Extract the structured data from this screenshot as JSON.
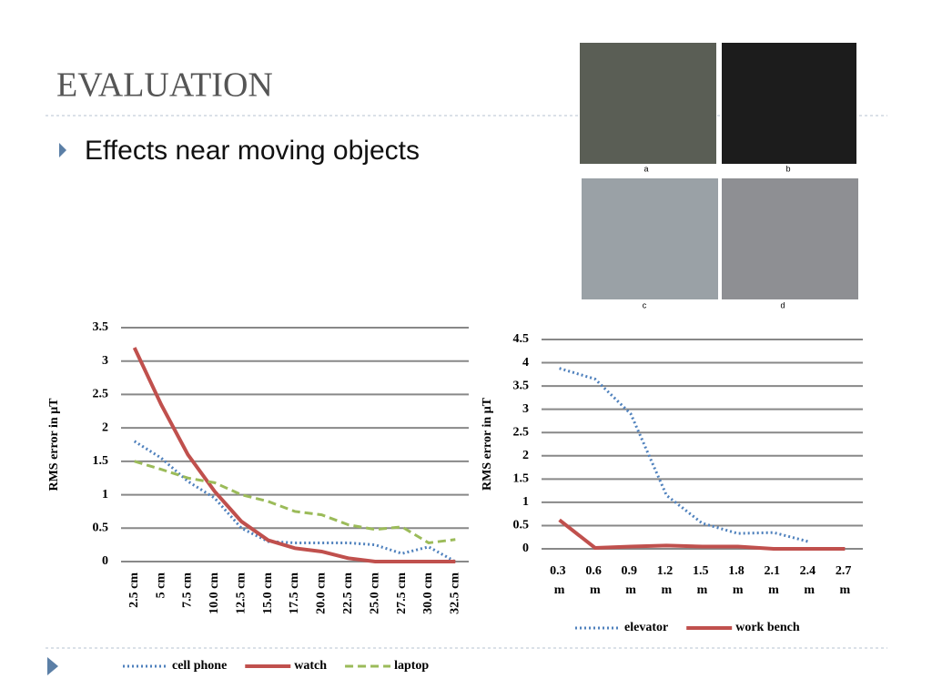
{
  "header": {
    "title": "EVALUATION",
    "bullet": "Effects near moving objects"
  },
  "photos": [
    {
      "caption": "a"
    },
    {
      "caption": "b"
    },
    {
      "caption": "c"
    },
    {
      "caption": "d"
    }
  ],
  "chart_data": [
    {
      "type": "line",
      "y_label": "RMS error in µT",
      "categories": [
        "2.5 cm",
        "5 cm",
        "7.5 cm",
        "10.0 cm",
        "12.5 cm",
        "15.0 cm",
        "17.5 cm",
        "20.0 cm",
        "22.5 cm",
        "25.0 cm",
        "27.5 cm",
        "30.0 cm",
        "32.5 cm"
      ],
      "ylim": [
        0,
        3.5
      ],
      "yticks": [
        0,
        0.5,
        1,
        1.5,
        2,
        2.5,
        3,
        3.5
      ],
      "grid": true,
      "legend": "bottom",
      "series": [
        {
          "name": "cell phone",
          "color": "#4f81bd",
          "style": "dotted",
          "values": [
            1.8,
            1.55,
            1.2,
            0.95,
            0.5,
            0.3,
            0.28,
            0.28,
            0.28,
            0.25,
            0.12,
            0.22,
            0
          ]
        },
        {
          "name": "watch",
          "color": "#c0504d",
          "style": "solid",
          "values": [
            3.2,
            2.35,
            1.6,
            1.05,
            0.6,
            0.32,
            0.2,
            0.15,
            0.05,
            0,
            0,
            0,
            0
          ]
        },
        {
          "name": "laptop",
          "color": "#9bbb59",
          "style": "dashed",
          "values": [
            1.5,
            1.38,
            1.25,
            1.18,
            1.0,
            0.9,
            0.75,
            0.7,
            0.55,
            0.48,
            0.52,
            0.28,
            0.33
          ]
        }
      ]
    },
    {
      "type": "line",
      "y_label": "RMS error in µT",
      "categories": [
        "0.3 m",
        "0.6 m",
        "0.9 m",
        "1.2 m",
        "1.5 m",
        "1.8 m",
        "2.1 m",
        "2.4 m",
        "2.7 m"
      ],
      "ylim": [
        0,
        4.5
      ],
      "yticks": [
        0,
        0.5,
        1,
        1.5,
        2,
        2.5,
        3,
        3.5,
        4,
        4.5
      ],
      "grid": true,
      "legend": "bottom",
      "series": [
        {
          "name": "elevator",
          "color": "#4f81bd",
          "style": "dotted",
          "values": [
            3.88,
            3.65,
            2.9,
            1.15,
            0.55,
            0.33,
            0.35,
            0.15,
            null
          ]
        },
        {
          "name": "work bench",
          "color": "#c0504d",
          "style": "solid",
          "values": [
            0.62,
            0.02,
            0.05,
            0.07,
            0.05,
            0.05,
            0,
            0,
            0
          ]
        }
      ]
    }
  ]
}
